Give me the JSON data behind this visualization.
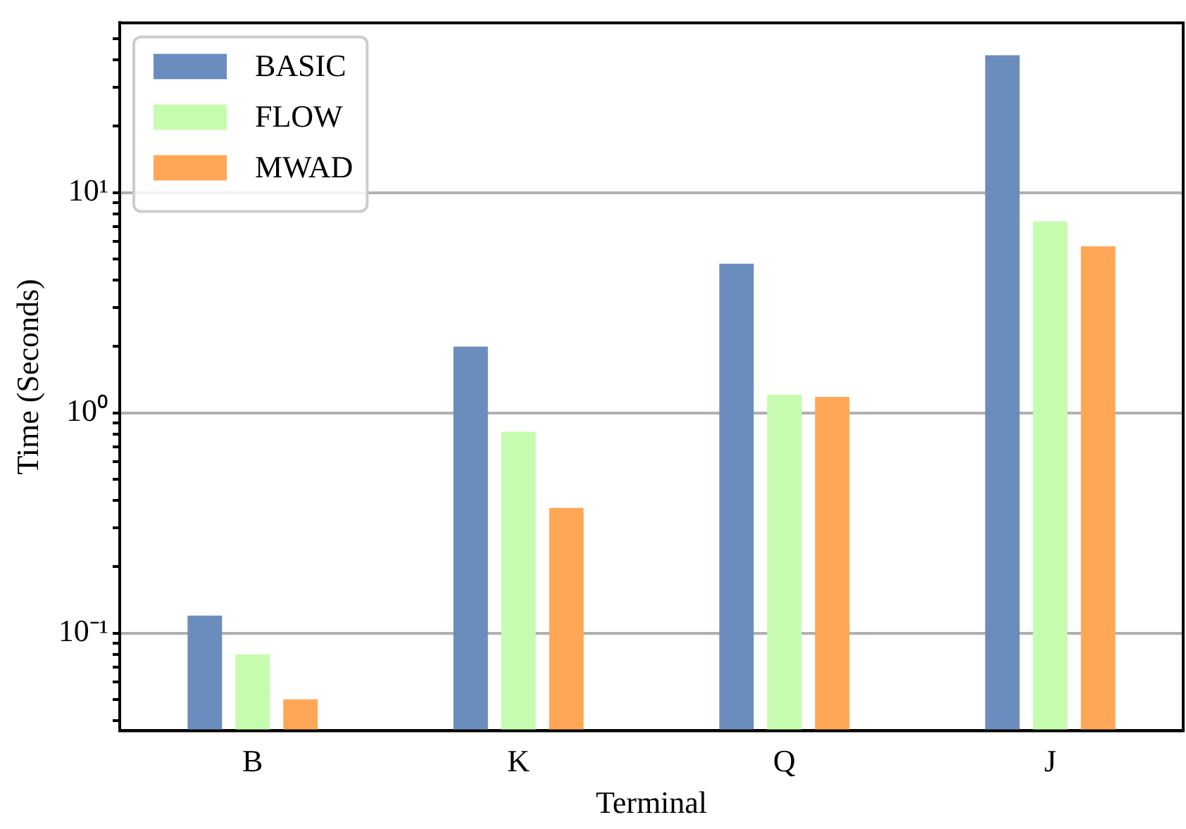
{
  "chart_data": {
    "type": "bar",
    "xlabel": "Terminal",
    "ylabel": "Time (Seconds)",
    "categories": [
      "B",
      "K",
      "Q",
      "J"
    ],
    "series": [
      {
        "name": "BASIC",
        "color": "#6a8dbd",
        "values": [
          0.12,
          2.0,
          4.75,
          42
        ]
      },
      {
        "name": "FLOW",
        "color": "#c6fcb0",
        "values": [
          0.08,
          0.82,
          1.21,
          7.4
        ]
      },
      {
        "name": "MWAD",
        "color": "#ffa756",
        "values": [
          0.05,
          0.37,
          1.18,
          5.7
        ]
      }
    ],
    "log": "y",
    "ylim": [
      0.036,
      59
    ],
    "yticks": [
      {
        "value": 0.04,
        "label": null
      },
      {
        "value": 0.05,
        "label": null
      },
      {
        "value": 0.06,
        "label": null
      },
      {
        "value": 0.07,
        "label": null
      },
      {
        "value": 0.08,
        "label": null
      },
      {
        "value": 0.09,
        "label": null
      },
      {
        "value": 0.1,
        "label": "10⁻¹"
      },
      {
        "value": 0.2,
        "label": null
      },
      {
        "value": 0.3,
        "label": null
      },
      {
        "value": 0.4,
        "label": null
      },
      {
        "value": 0.5,
        "label": null
      },
      {
        "value": 0.6,
        "label": null
      },
      {
        "value": 0.7,
        "label": null
      },
      {
        "value": 0.8,
        "label": null
      },
      {
        "value": 0.9,
        "label": null
      },
      {
        "value": 1,
        "label": "10⁰"
      },
      {
        "value": 2,
        "label": null
      },
      {
        "value": 3,
        "label": null
      },
      {
        "value": 4,
        "label": null
      },
      {
        "value": 5,
        "label": null
      },
      {
        "value": 6,
        "label": null
      },
      {
        "value": 7,
        "label": null
      },
      {
        "value": 8,
        "label": null
      },
      {
        "value": 9,
        "label": null
      },
      {
        "value": 10,
        "label": "10¹"
      },
      {
        "value": 20,
        "label": null
      },
      {
        "value": 30,
        "label": null
      },
      {
        "value": 40,
        "label": null
      },
      {
        "value": 50,
        "label": null
      }
    ],
    "grid": "y",
    "legend": "top left"
  }
}
